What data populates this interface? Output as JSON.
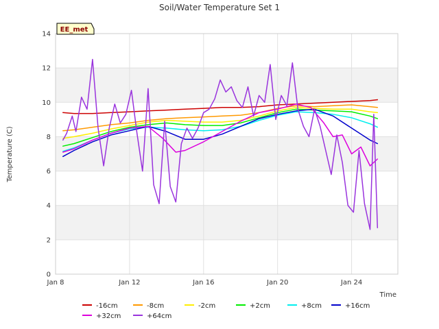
{
  "chart_data": {
    "type": "line",
    "title": "Soil/Water Temperature Set 1",
    "xlabel": "Time",
    "ylabel": "Temperature (C)",
    "ylim": [
      0,
      14
    ],
    "xlim": [
      8,
      26.5
    ],
    "yticks": [
      0,
      2,
      4,
      6,
      8,
      10,
      12,
      14
    ],
    "xticks": [
      {
        "x": 8,
        "label": "Jan 8"
      },
      {
        "x": 12,
        "label": "Jan 12"
      },
      {
        "x": 16,
        "label": "Jan 16"
      },
      {
        "x": 20,
        "label": "Jan 20"
      },
      {
        "x": 24,
        "label": "Jan 24"
      }
    ],
    "grid": true,
    "legend_position": "bottom",
    "site_label": "EE_met",
    "series": [
      {
        "name": "-16cm",
        "color": "#cc0000",
        "x": [
          8.4,
          9,
          10,
          11,
          12,
          13,
          14,
          15,
          16,
          17,
          18,
          19,
          20,
          21,
          22,
          23,
          24,
          25,
          25.4
        ],
        "y": [
          9.4,
          9.35,
          9.35,
          9.4,
          9.45,
          9.5,
          9.55,
          9.6,
          9.65,
          9.7,
          9.7,
          9.75,
          9.85,
          9.9,
          9.95,
          10.0,
          10.05,
          10.1,
          10.15
        ]
      },
      {
        "name": "-8cm",
        "color": "#ff9900",
        "x": [
          8.4,
          9,
          10,
          11,
          12,
          13,
          14,
          15,
          16,
          17,
          18,
          19,
          20,
          21,
          22,
          23,
          24,
          25,
          25.4
        ],
        "y": [
          8.35,
          8.4,
          8.55,
          8.7,
          8.8,
          8.95,
          9.05,
          9.1,
          9.15,
          9.2,
          9.25,
          9.4,
          9.65,
          9.8,
          9.75,
          9.8,
          9.85,
          9.75,
          9.7
        ]
      },
      {
        "name": "-2cm",
        "color": "#ffee00",
        "x": [
          8.4,
          9,
          10,
          11,
          12,
          13,
          14,
          15,
          16,
          17,
          18,
          19,
          20,
          21,
          22,
          23,
          24,
          25,
          25.4
        ],
        "y": [
          7.9,
          8.0,
          8.2,
          8.45,
          8.65,
          8.85,
          8.95,
          8.9,
          8.85,
          8.85,
          8.95,
          9.2,
          9.5,
          9.7,
          9.65,
          9.6,
          9.6,
          9.45,
          9.4
        ]
      },
      {
        "name": "+2cm",
        "color": "#00ee00",
        "x": [
          8.4,
          9,
          10,
          11,
          12,
          13,
          14,
          15,
          16,
          17,
          18,
          19,
          20,
          21,
          22,
          23,
          24,
          25,
          25.4
        ],
        "y": [
          7.45,
          7.6,
          7.95,
          8.3,
          8.55,
          8.7,
          8.8,
          8.7,
          8.65,
          8.65,
          8.8,
          9.1,
          9.4,
          9.6,
          9.55,
          9.5,
          9.45,
          9.2,
          9.05
        ]
      },
      {
        "name": "+8cm",
        "color": "#00eeee",
        "x": [
          8.4,
          9,
          10,
          11,
          12,
          13,
          14,
          15,
          16,
          17,
          18,
          19,
          20,
          21,
          22,
          23,
          24,
          25,
          25.4
        ],
        "y": [
          7.15,
          7.35,
          7.8,
          8.2,
          8.45,
          8.55,
          8.5,
          8.4,
          8.35,
          8.4,
          8.6,
          8.95,
          9.25,
          9.45,
          9.4,
          9.3,
          9.1,
          8.75,
          8.55
        ]
      },
      {
        "name": "+16cm",
        "color": "#0000cc",
        "x": [
          8.4,
          9,
          10,
          11,
          12,
          13,
          14,
          15,
          16,
          17,
          18,
          19,
          20,
          21,
          22,
          23,
          24,
          25,
          25.4
        ],
        "y": [
          6.85,
          7.2,
          7.7,
          8.1,
          8.35,
          8.6,
          8.3,
          7.85,
          7.85,
          8.15,
          8.6,
          9.05,
          9.3,
          9.5,
          9.6,
          9.2,
          8.5,
          7.8,
          7.6
        ]
      },
      {
        "name": "+32cm",
        "color": "#dd00dd",
        "x": [
          8.4,
          9,
          10,
          11,
          12,
          13,
          13.8,
          14.5,
          15,
          16,
          17,
          18,
          19,
          20,
          21,
          21.8,
          22.5,
          23,
          23.5,
          24,
          24.5,
          25,
          25.4
        ],
        "y": [
          7.1,
          7.3,
          7.8,
          8.2,
          8.5,
          8.6,
          7.9,
          7.1,
          7.2,
          7.7,
          8.3,
          8.9,
          9.4,
          9.6,
          9.9,
          9.7,
          8.8,
          8.0,
          8.1,
          7.0,
          7.4,
          6.3,
          6.7
        ]
      },
      {
        "name": "+64cm",
        "color": "#9933dd",
        "x": [
          8.4,
          8.6,
          8.9,
          9.1,
          9.4,
          9.7,
          10.0,
          10.3,
          10.6,
          10.9,
          11.2,
          11.5,
          11.8,
          12.1,
          12.4,
          12.7,
          13.0,
          13.3,
          13.6,
          13.9,
          14.2,
          14.5,
          14.8,
          15.1,
          15.4,
          15.7,
          16.0,
          16.3,
          16.6,
          16.9,
          17.2,
          17.5,
          17.8,
          18.1,
          18.4,
          18.7,
          19.0,
          19.3,
          19.6,
          19.9,
          20.2,
          20.5,
          20.8,
          21.1,
          21.4,
          21.7,
          22.0,
          22.3,
          22.6,
          22.9,
          23.2,
          23.5,
          23.8,
          24.1,
          24.4,
          24.7,
          25.0,
          25.2,
          25.4
        ],
        "y": [
          7.8,
          8.2,
          9.2,
          8.3,
          10.3,
          9.6,
          12.5,
          8.5,
          6.3,
          8.5,
          9.9,
          8.8,
          9.3,
          10.7,
          8.2,
          6.0,
          10.8,
          5.2,
          4.1,
          8.9,
          5.1,
          4.2,
          7.6,
          8.5,
          7.9,
          8.5,
          9.4,
          9.6,
          10.2,
          11.3,
          10.6,
          10.9,
          10.1,
          9.7,
          10.9,
          9.2,
          10.4,
          10.0,
          12.2,
          9.0,
          10.4,
          9.8,
          12.3,
          9.6,
          8.6,
          8.0,
          9.6,
          8.6,
          7.2,
          5.8,
          8.1,
          6.5,
          4.0,
          3.6,
          7.2,
          4.1,
          2.6,
          9.3,
          2.7
        ]
      }
    ]
  }
}
